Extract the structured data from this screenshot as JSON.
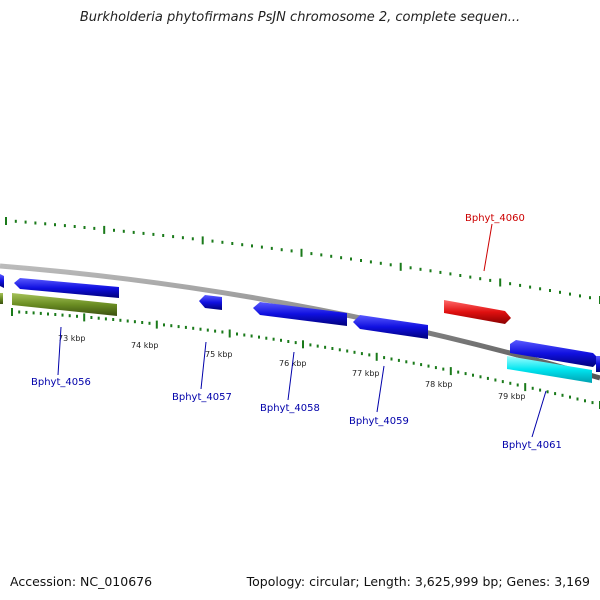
{
  "title": "Burkholderia phytofirmans PsJN chromosome 2, complete sequen...",
  "footer": {
    "accession": "Accession: NC_010676",
    "summary": "Topology: circular; Length: 3,625,999 bp; Genes: 3,169"
  },
  "colors": {
    "forward_gene": "#1010e0",
    "olive_gene": "#6b8e23",
    "red_gene": "#e01010",
    "cyan_gene": "#00e5f0",
    "tick": "#1a7a1a",
    "backbone": "#888888",
    "label_blue": "#0000aa",
    "label_red": "#cc0000"
  },
  "scale_labels": [
    "73 kbp",
    "74 kbp",
    "75 kbp",
    "76 kbp",
    "77 kbp",
    "78 kbp",
    "79 kbp"
  ],
  "gene_labels": [
    {
      "name": "Bphyt_4056",
      "color": "blue"
    },
    {
      "name": "Bphyt_4057",
      "color": "blue"
    },
    {
      "name": "Bphyt_4058",
      "color": "blue"
    },
    {
      "name": "Bphyt_4059",
      "color": "blue"
    },
    {
      "name": "Bphyt_4060",
      "color": "red"
    },
    {
      "name": "Bphyt_4061",
      "color": "blue"
    }
  ]
}
